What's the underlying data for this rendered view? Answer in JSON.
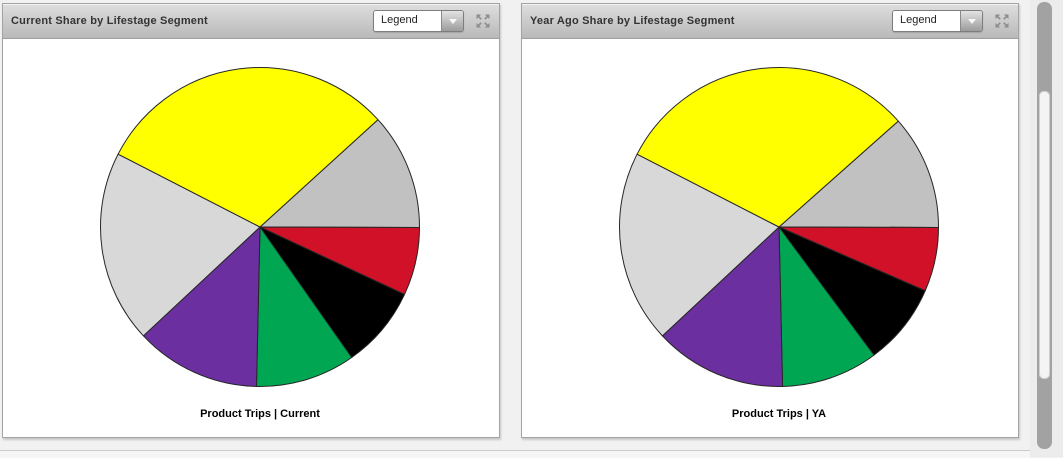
{
  "panels": [
    {
      "title": "Current Share by Lifestage Segment",
      "legend_label": "Legend",
      "caption": "Product Trips | Current"
    },
    {
      "title": "Year Ago Share by Lifestage Segment",
      "legend_label": "Legend",
      "caption": "Product Trips | YA"
    }
  ],
  "chart_data": [
    {
      "type": "pie",
      "title": "Current Share by Lifestage Segment",
      "caption": "Product Trips | Current",
      "legend_position": "collapsed-dropdown",
      "start_angle_deg": 42.3,
      "direction": "clockwise",
      "outline_color": "#262626",
      "slices": [
        {
          "color": "#c1c1c1",
          "percent": 11.8
        },
        {
          "color": "#d01127",
          "percent": 6.9
        },
        {
          "color": "#000000",
          "percent": 8.3
        },
        {
          "color": "#00a651",
          "percent": 10.1
        },
        {
          "color": "#6b2fa0",
          "percent": 12.7
        },
        {
          "color": "#d8d8d8",
          "percent": 19.5
        },
        {
          "color": "#ffff00",
          "percent": 30.7
        }
      ]
    },
    {
      "type": "pie",
      "title": "Year Ago Share by Lifestage Segment",
      "caption": "Product Trips | YA",
      "legend_position": "collapsed-dropdown",
      "start_angle_deg": 41.6,
      "direction": "clockwise",
      "outline_color": "#262626",
      "slices": [
        {
          "color": "#c1c1c1",
          "percent": 11.6
        },
        {
          "color": "#d01127",
          "percent": 6.5
        },
        {
          "color": "#000000",
          "percent": 8.3
        },
        {
          "color": "#00a651",
          "percent": 9.8
        },
        {
          "color": "#6b2fa0",
          "percent": 13.4
        },
        {
          "color": "#d8d8d8",
          "percent": 19.5
        },
        {
          "color": "#ffff00",
          "percent": 30.9
        }
      ]
    }
  ]
}
